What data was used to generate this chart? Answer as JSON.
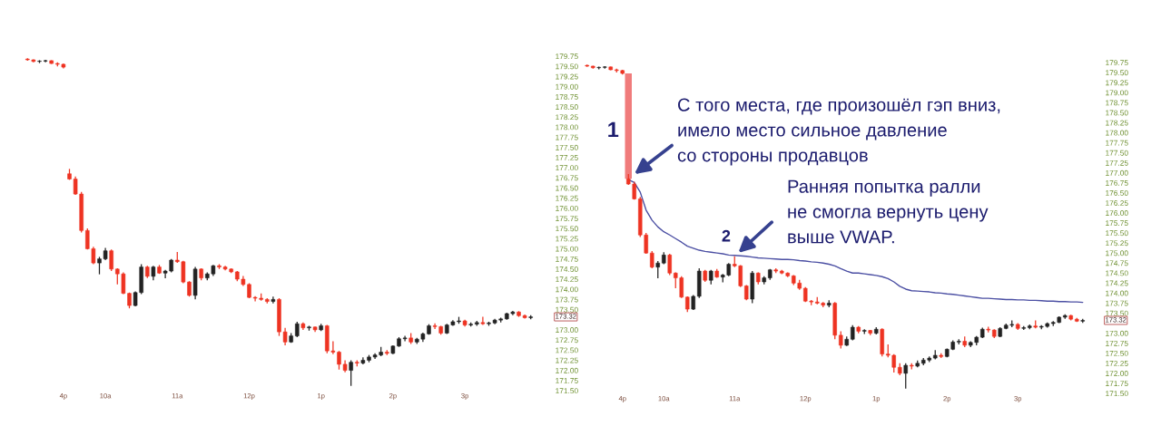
{
  "chart_data": [
    {
      "type": "candlestick",
      "categories": [
        null,
        null,
        null,
        null,
        null,
        null,
        "4p",
        null,
        null,
        null,
        null,
        null,
        null,
        "10a",
        null,
        null,
        null,
        null,
        null,
        null,
        null,
        null,
        null,
        null,
        null,
        "11a",
        null,
        null,
        null,
        null,
        null,
        null,
        null,
        null,
        null,
        null,
        null,
        "12p",
        null,
        null,
        null,
        null,
        null,
        null,
        null,
        null,
        null,
        null,
        null,
        "1p",
        null,
        null,
        null,
        null,
        null,
        null,
        null,
        null,
        null,
        null,
        null,
        "2p",
        null,
        null,
        null,
        null,
        null,
        null,
        null,
        null,
        null,
        null,
        null,
        "3p",
        null,
        null,
        null,
        null,
        null,
        null,
        null,
        null,
        null,
        null,
        null
      ],
      "ohlc": [
        [
          179.68,
          179.7,
          179.64,
          179.66
        ],
        [
          179.66,
          179.67,
          179.6,
          179.62
        ],
        [
          179.62,
          179.65,
          179.58,
          179.63
        ],
        [
          179.63,
          179.66,
          179.6,
          179.64
        ],
        [
          179.64,
          179.65,
          179.56,
          179.57
        ],
        [
          179.57,
          179.6,
          179.5,
          179.55
        ],
        [
          179.55,
          179.57,
          179.45,
          179.48
        ],
        [
          176.85,
          176.97,
          176.7,
          176.72
        ],
        [
          176.72,
          176.78,
          176.33,
          176.35
        ],
        [
          176.35,
          176.4,
          175.4,
          175.45
        ],
        [
          175.45,
          175.5,
          174.98,
          175.0
        ],
        [
          175.0,
          175.05,
          174.62,
          174.65
        ],
        [
          174.65,
          174.8,
          174.37,
          174.75
        ],
        [
          174.75,
          175.02,
          174.72,
          174.95
        ],
        [
          174.95,
          174.98,
          174.45,
          174.5
        ],
        [
          174.5,
          174.52,
          174.12,
          174.38
        ],
        [
          174.38,
          174.42,
          173.88,
          173.9
        ],
        [
          173.9,
          173.92,
          173.53,
          173.6
        ],
        [
          173.6,
          173.95,
          173.58,
          173.92
        ],
        [
          173.92,
          174.62,
          173.88,
          174.55
        ],
        [
          174.55,
          174.58,
          174.28,
          174.32
        ],
        [
          174.32,
          174.58,
          174.22,
          174.55
        ],
        [
          174.55,
          174.6,
          174.38,
          174.4
        ],
        [
          174.4,
          174.48,
          174.27,
          174.45
        ],
        [
          174.45,
          174.75,
          174.42,
          174.72
        ],
        [
          174.72,
          174.92,
          174.65,
          174.68
        ],
        [
          174.68,
          174.7,
          174.15,
          174.18
        ],
        [
          174.18,
          174.2,
          173.82,
          173.85
        ],
        [
          173.85,
          174.55,
          173.75,
          174.5
        ],
        [
          174.5,
          174.52,
          174.22,
          174.28
        ],
        [
          174.28,
          174.42,
          174.22,
          174.38
        ],
        [
          174.38,
          174.6,
          174.33,
          174.58
        ],
        [
          174.58,
          174.62,
          174.5,
          174.55
        ],
        [
          174.55,
          174.58,
          174.47,
          174.5
        ],
        [
          174.5,
          174.52,
          174.4,
          174.43
        ],
        [
          174.43,
          174.45,
          174.2,
          174.25
        ],
        [
          174.25,
          174.33,
          174.08,
          174.12
        ],
        [
          174.12,
          174.15,
          173.78,
          173.8
        ],
        [
          173.8,
          173.83,
          173.7,
          173.78
        ],
        [
          173.78,
          173.9,
          173.72,
          173.75
        ],
        [
          173.75,
          173.78,
          173.65,
          173.7
        ],
        [
          173.7,
          173.82,
          173.65,
          173.75
        ],
        [
          173.75,
          173.78,
          172.85,
          172.95
        ],
        [
          172.95,
          173.05,
          172.62,
          172.7
        ],
        [
          172.7,
          172.92,
          172.68,
          172.85
        ],
        [
          172.85,
          173.2,
          172.82,
          173.15
        ],
        [
          173.15,
          173.18,
          173.0,
          173.05
        ],
        [
          173.05,
          173.1,
          172.98,
          173.07
        ],
        [
          173.07,
          173.08,
          172.95,
          173.0
        ],
        [
          173.0,
          173.15,
          172.97,
          173.1
        ],
        [
          173.1,
          173.12,
          172.42,
          172.48
        ],
        [
          172.48,
          172.72,
          172.4,
          172.45
        ],
        [
          172.45,
          172.48,
          172.02,
          172.15
        ],
        [
          172.15,
          172.25,
          171.95,
          172.0
        ],
        [
          172.0,
          172.25,
          171.62,
          172.2
        ],
        [
          172.2,
          172.25,
          172.1,
          172.18
        ],
        [
          172.18,
          172.32,
          172.15,
          172.25
        ],
        [
          172.25,
          172.38,
          172.2,
          172.33
        ],
        [
          172.33,
          172.42,
          172.28,
          172.38
        ],
        [
          172.38,
          172.58,
          172.35,
          172.45
        ],
        [
          172.45,
          172.5,
          172.38,
          172.42
        ],
        [
          172.42,
          172.62,
          172.4,
          172.6
        ],
        [
          172.6,
          172.82,
          172.58,
          172.78
        ],
        [
          172.78,
          172.85,
          172.72,
          172.8
        ],
        [
          172.8,
          172.92,
          172.65,
          172.7
        ],
        [
          172.7,
          172.8,
          172.65,
          172.77
        ],
        [
          172.77,
          172.93,
          172.7,
          172.9
        ],
        [
          172.9,
          173.14,
          172.88,
          173.1
        ],
        [
          173.1,
          173.16,
          173.02,
          173.08
        ],
        [
          173.08,
          173.1,
          172.88,
          172.92
        ],
        [
          172.92,
          173.15,
          172.9,
          173.12
        ],
        [
          173.12,
          173.24,
          173.1,
          173.2
        ],
        [
          173.2,
          173.32,
          173.15,
          173.22
        ],
        [
          173.22,
          173.25,
          173.08,
          173.12
        ],
        [
          173.12,
          173.18,
          173.08,
          173.14
        ],
        [
          173.14,
          173.22,
          173.1,
          173.18
        ],
        [
          173.18,
          173.32,
          173.12,
          173.15
        ],
        [
          173.15,
          173.2,
          173.1,
          173.17
        ],
        [
          173.17,
          173.27,
          173.14,
          173.24
        ],
        [
          173.24,
          173.3,
          173.18,
          173.27
        ],
        [
          173.27,
          173.42,
          173.25,
          173.4
        ],
        [
          173.4,
          173.47,
          173.36,
          173.44
        ],
        [
          173.44,
          173.46,
          173.32,
          173.35
        ],
        [
          173.35,
          173.38,
          173.28,
          173.3
        ],
        [
          173.3,
          173.36,
          173.26,
          173.32
        ]
      ],
      "colors": [
        "#ee3322",
        "#ee3322",
        "#222222",
        "#222222",
        "#ee3322",
        "#ee3322",
        "#ee3322",
        "#ee3322",
        "#ee3322",
        "#ee3322",
        "#ee3322",
        "#ee3322",
        "#222222",
        "#222222",
        "#ee3322",
        "#ee3322",
        "#ee3322",
        "#ee3322",
        "#222222",
        "#222222",
        "#ee3322",
        "#222222",
        "#ee3322",
        "#222222",
        "#222222",
        "#ee3322",
        "#ee3322",
        "#ee3322",
        "#222222",
        "#ee3322",
        "#222222",
        "#222222",
        "#ee3322",
        "#ee3322",
        "#ee3322",
        "#ee3322",
        "#ee3322",
        "#ee3322",
        "#ee3322",
        "#ee3322",
        "#ee3322",
        "#222222",
        "#ee3322",
        "#ee3322",
        "#222222",
        "#222222",
        "#ee3322",
        "#222222",
        "#ee3322",
        "#222222",
        "#ee3322",
        "#ee3322",
        "#ee3322",
        "#ee3322",
        "#222222",
        "#ee3322",
        "#222222",
        "#222222",
        "#222222",
        "#222222",
        "#ee3322",
        "#222222",
        "#222222",
        "#222222",
        "#ee3322",
        "#222222",
        "#222222",
        "#222222",
        "#ee3322",
        "#ee3322",
        "#222222",
        "#222222",
        "#222222",
        "#ee3322",
        "#222222",
        "#222222",
        "#ee3322",
        "#222222",
        "#222222",
        "#222222",
        "#222222",
        "#222222",
        "#ee3322",
        "#ee3322",
        "#222222"
      ],
      "ylim": [
        171.5,
        179.75
      ],
      "yticks": [
        {
          "value": 171.5,
          "label": "171.50"
        },
        {
          "value": 171.75,
          "label": "171.75"
        },
        {
          "value": 172,
          "label": "172.00"
        },
        {
          "value": 172.25,
          "label": "172.25"
        },
        {
          "value": 172.5,
          "label": "172.50"
        },
        {
          "value": 172.75,
          "label": "172.75"
        },
        {
          "value": 173,
          "label": "173.00"
        },
        {
          "value": 173.5,
          "label": "173.50"
        },
        {
          "value": 173.75,
          "label": "173.75"
        },
        {
          "value": 174,
          "label": "174.00"
        },
        {
          "value": 174.25,
          "label": "174.25"
        },
        {
          "value": 174.5,
          "label": "174.50"
        },
        {
          "value": 174.75,
          "label": "174.75"
        },
        {
          "value": 175,
          "label": "175.00"
        },
        {
          "value": 175.25,
          "label": "175.25"
        },
        {
          "value": 175.5,
          "label": "175.50"
        },
        {
          "value": 175.75,
          "label": "175.75"
        },
        {
          "value": 176,
          "label": "176.00"
        },
        {
          "value": 176.25,
          "label": "176.25"
        },
        {
          "value": 176.5,
          "label": "176.50"
        },
        {
          "value": 176.75,
          "label": "176.75"
        },
        {
          "value": 177,
          "label": "177.00"
        },
        {
          "value": 177.25,
          "label": "177.25"
        },
        {
          "value": 177.5,
          "label": "177.50"
        },
        {
          "value": 177.75,
          "label": "177.75"
        },
        {
          "value": 178,
          "label": "178.00"
        },
        {
          "value": 178.25,
          "label": "178.25"
        },
        {
          "value": 178.5,
          "label": "178.50"
        },
        {
          "value": 178.75,
          "label": "178.75"
        },
        {
          "value": 179,
          "label": "179.00"
        },
        {
          "value": 179.25,
          "label": "179.25"
        },
        {
          "value": 179.5,
          "label": "179.50"
        },
        {
          "value": 179.75,
          "label": "179.75"
        }
      ],
      "annotations": [
        "173.32"
      ]
    },
    {
      "type": "candlestick",
      "categories": [
        null,
        null,
        null,
        null,
        null,
        null,
        "4p",
        null,
        null,
        null,
        null,
        null,
        null,
        "10a",
        null,
        null,
        null,
        null,
        null,
        null,
        null,
        null,
        null,
        null,
        null,
        "11a",
        null,
        null,
        null,
        null,
        null,
        null,
        null,
        null,
        null,
        null,
        null,
        "12p",
        null,
        null,
        null,
        null,
        null,
        null,
        null,
        null,
        null,
        null,
        null,
        "1p",
        null,
        null,
        null,
        null,
        null,
        null,
        null,
        null,
        null,
        null,
        null,
        "2p",
        null,
        null,
        null,
        null,
        null,
        null,
        null,
        null,
        null,
        null,
        null,
        "3p",
        null,
        null,
        null,
        null,
        null,
        null,
        null,
        null,
        null,
        null,
        null
      ],
      "ohlc": [
        [
          179.68,
          179.7,
          179.64,
          179.66
        ],
        [
          179.66,
          179.67,
          179.6,
          179.62
        ],
        [
          179.62,
          179.65,
          179.58,
          179.63
        ],
        [
          179.63,
          179.66,
          179.6,
          179.64
        ],
        [
          179.64,
          179.65,
          179.56,
          179.57
        ],
        [
          179.57,
          179.6,
          179.5,
          179.55
        ],
        [
          179.55,
          179.57,
          179.45,
          179.48
        ],
        [
          176.85,
          176.97,
          176.7,
          176.72
        ],
        [
          176.72,
          176.78,
          176.33,
          176.35
        ],
        [
          176.35,
          176.4,
          175.4,
          175.45
        ],
        [
          175.45,
          175.5,
          174.98,
          175.0
        ],
        [
          175.0,
          175.05,
          174.62,
          174.65
        ],
        [
          174.65,
          174.8,
          174.37,
          174.75
        ],
        [
          174.75,
          175.02,
          174.72,
          174.95
        ],
        [
          174.95,
          174.98,
          174.45,
          174.5
        ],
        [
          174.5,
          174.52,
          174.12,
          174.38
        ],
        [
          174.38,
          174.42,
          173.88,
          173.9
        ],
        [
          173.9,
          173.92,
          173.53,
          173.6
        ],
        [
          173.6,
          173.95,
          173.58,
          173.92
        ],
        [
          173.92,
          174.62,
          173.88,
          174.55
        ],
        [
          174.55,
          174.58,
          174.28,
          174.32
        ],
        [
          174.32,
          174.58,
          174.22,
          174.55
        ],
        [
          174.55,
          174.6,
          174.38,
          174.4
        ],
        [
          174.4,
          174.48,
          174.27,
          174.45
        ],
        [
          174.45,
          174.75,
          174.42,
          174.72
        ],
        [
          174.72,
          174.92,
          174.65,
          174.68
        ],
        [
          174.68,
          174.7,
          174.15,
          174.18
        ],
        [
          174.18,
          174.2,
          173.82,
          173.85
        ],
        [
          173.85,
          174.55,
          173.75,
          174.5
        ],
        [
          174.5,
          174.52,
          174.22,
          174.28
        ],
        [
          174.28,
          174.42,
          174.22,
          174.38
        ],
        [
          174.38,
          174.6,
          174.33,
          174.58
        ],
        [
          174.58,
          174.62,
          174.5,
          174.55
        ],
        [
          174.55,
          174.58,
          174.47,
          174.5
        ],
        [
          174.5,
          174.52,
          174.4,
          174.43
        ],
        [
          174.43,
          174.45,
          174.2,
          174.25
        ],
        [
          174.25,
          174.33,
          174.08,
          174.12
        ],
        [
          174.12,
          174.15,
          173.78,
          173.8
        ],
        [
          173.8,
          173.83,
          173.7,
          173.78
        ],
        [
          173.78,
          173.9,
          173.72,
          173.75
        ],
        [
          173.75,
          173.78,
          173.65,
          173.7
        ],
        [
          173.7,
          173.82,
          173.65,
          173.75
        ],
        [
          173.75,
          173.78,
          172.85,
          172.95
        ],
        [
          172.95,
          173.05,
          172.62,
          172.7
        ],
        [
          172.7,
          172.92,
          172.68,
          172.85
        ],
        [
          172.85,
          173.2,
          172.82,
          173.15
        ],
        [
          173.15,
          173.18,
          173.0,
          173.05
        ],
        [
          173.05,
          173.1,
          172.98,
          173.07
        ],
        [
          173.07,
          173.08,
          172.95,
          173.0
        ],
        [
          173.0,
          173.15,
          172.97,
          173.1
        ],
        [
          173.1,
          173.12,
          172.42,
          172.48
        ],
        [
          172.48,
          172.72,
          172.4,
          172.45
        ],
        [
          172.45,
          172.48,
          172.02,
          172.15
        ],
        [
          172.15,
          172.25,
          171.95,
          172.0
        ],
        [
          172.0,
          172.25,
          171.62,
          172.2
        ],
        [
          172.2,
          172.25,
          172.1,
          172.18
        ],
        [
          172.18,
          172.32,
          172.15,
          172.25
        ],
        [
          172.25,
          172.38,
          172.2,
          172.33
        ],
        [
          172.33,
          172.42,
          172.28,
          172.38
        ],
        [
          172.38,
          172.58,
          172.35,
          172.45
        ],
        [
          172.45,
          172.5,
          172.38,
          172.42
        ],
        [
          172.42,
          172.62,
          172.4,
          172.6
        ],
        [
          172.6,
          172.82,
          172.58,
          172.78
        ],
        [
          172.78,
          172.85,
          172.72,
          172.8
        ],
        [
          172.8,
          172.92,
          172.65,
          172.7
        ],
        [
          172.7,
          172.8,
          172.65,
          172.77
        ],
        [
          172.77,
          172.93,
          172.7,
          172.9
        ],
        [
          172.9,
          173.14,
          172.88,
          173.1
        ],
        [
          173.1,
          173.16,
          173.02,
          173.08
        ],
        [
          173.08,
          173.1,
          172.88,
          172.92
        ],
        [
          172.92,
          173.15,
          172.9,
          173.12
        ],
        [
          173.12,
          173.24,
          173.1,
          173.2
        ],
        [
          173.2,
          173.32,
          173.15,
          173.22
        ],
        [
          173.22,
          173.25,
          173.08,
          173.12
        ],
        [
          173.12,
          173.18,
          173.08,
          173.14
        ],
        [
          173.14,
          173.22,
          173.1,
          173.18
        ],
        [
          173.18,
          173.32,
          173.12,
          173.15
        ],
        [
          173.15,
          173.2,
          173.1,
          173.17
        ],
        [
          173.17,
          173.27,
          173.14,
          173.24
        ],
        [
          173.24,
          173.3,
          173.18,
          173.27
        ],
        [
          173.27,
          173.42,
          173.25,
          173.4
        ],
        [
          173.4,
          173.47,
          173.36,
          173.44
        ],
        [
          173.44,
          173.46,
          173.32,
          173.35
        ],
        [
          173.35,
          173.38,
          173.28,
          173.3
        ],
        [
          173.3,
          173.36,
          173.26,
          173.32
        ]
      ],
      "colors": [
        "#ee3322",
        "#ee3322",
        "#222222",
        "#222222",
        "#ee3322",
        "#ee3322",
        "#ee3322",
        "#ee3322",
        "#ee3322",
        "#ee3322",
        "#ee3322",
        "#ee3322",
        "#222222",
        "#222222",
        "#ee3322",
        "#ee3322",
        "#ee3322",
        "#ee3322",
        "#222222",
        "#222222",
        "#ee3322",
        "#222222",
        "#ee3322",
        "#222222",
        "#222222",
        "#ee3322",
        "#ee3322",
        "#ee3322",
        "#222222",
        "#ee3322",
        "#222222",
        "#222222",
        "#ee3322",
        "#ee3322",
        "#ee3322",
        "#ee3322",
        "#ee3322",
        "#ee3322",
        "#ee3322",
        "#ee3322",
        "#ee3322",
        "#222222",
        "#ee3322",
        "#ee3322",
        "#222222",
        "#222222",
        "#ee3322",
        "#222222",
        "#ee3322",
        "#222222",
        "#ee3322",
        "#ee3322",
        "#ee3322",
        "#ee3322",
        "#222222",
        "#ee3322",
        "#222222",
        "#222222",
        "#222222",
        "#222222",
        "#ee3322",
        "#222222",
        "#222222",
        "#222222",
        "#ee3322",
        "#222222",
        "#222222",
        "#222222",
        "#ee3322",
        "#ee3322",
        "#222222",
        "#222222",
        "#222222",
        "#ee3322",
        "#222222",
        "#222222",
        "#ee3322",
        "#222222",
        "#222222",
        "#222222",
        "#222222",
        "#222222",
        "#ee3322",
        "#ee3322",
        "#222222"
      ],
      "series": [
        {
          "type": "line",
          "color": "#4b4fa3",
          "values": [
            null,
            null,
            null,
            null,
            null,
            null,
            null,
            176.83,
            176.76,
            176.52,
            176.07,
            175.82,
            175.65,
            175.53,
            175.45,
            175.36,
            175.27,
            175.17,
            175.12,
            175.07,
            175.04,
            175.02,
            175.0,
            174.98,
            174.95,
            174.94,
            174.93,
            174.92,
            174.9,
            174.88,
            174.87,
            174.86,
            174.85,
            174.84,
            174.84,
            174.83,
            174.81,
            174.8,
            174.78,
            174.77,
            174.75,
            174.72,
            174.68,
            174.61,
            174.55,
            174.5,
            174.5,
            174.48,
            174.46,
            174.44,
            174.41,
            174.36,
            174.28,
            174.17,
            174.1,
            174.06,
            174.05,
            174.04,
            174.03,
            174.01,
            174.0,
            173.98,
            173.97,
            173.95,
            173.93,
            173.91,
            173.89,
            173.87,
            173.87,
            173.86,
            173.85,
            173.84,
            173.84,
            173.83,
            173.83,
            173.82,
            173.82,
            173.81,
            173.8,
            173.8,
            173.79,
            173.79,
            173.78,
            173.78,
            173.77
          ]
        },
        {
          "type": "bar",
          "color": "#f07b7b",
          "values": [
            null,
            null,
            null,
            null,
            null,
            null,
            null,
            2.63,
            null,
            null,
            null,
            null,
            null,
            null,
            null,
            null,
            null,
            null,
            null,
            null,
            null,
            null,
            null,
            null,
            null,
            null,
            null,
            null,
            null,
            null,
            null,
            null,
            null,
            null,
            null,
            null,
            null,
            null,
            null,
            null,
            null,
            null,
            null,
            null,
            null,
            null,
            null,
            null,
            null,
            null,
            null,
            null,
            null,
            null,
            null,
            null,
            null,
            null,
            null,
            null,
            null,
            null,
            null,
            null,
            null,
            null,
            null,
            null,
            null,
            null,
            null,
            null,
            null,
            null,
            null,
            null,
            null,
            null,
            null,
            null,
            null,
            null,
            null,
            null,
            null
          ],
          "base": [
            null,
            null,
            null,
            null,
            null,
            null,
            null,
            176.85,
            null,
            null,
            null,
            null,
            null,
            null,
            null,
            null,
            null,
            null,
            null,
            null,
            null,
            null,
            null,
            null,
            null,
            null,
            null,
            null,
            null,
            null,
            null,
            null,
            null,
            null,
            null,
            null,
            null,
            null,
            null,
            null,
            null,
            null,
            null,
            null,
            null,
            null,
            null,
            null,
            null,
            null,
            null,
            null,
            null,
            null,
            null,
            null,
            null,
            null,
            null,
            null,
            null,
            null,
            null,
            null,
            null,
            null,
            null,
            null,
            null,
            null,
            null,
            null,
            null,
            null,
            null,
            null,
            null,
            null,
            null,
            null,
            null,
            null,
            null,
            null,
            null
          ]
        }
      ],
      "ylim": [
        171.5,
        179.75
      ],
      "yticks": [
        {
          "value": 171.5,
          "label": "171.50"
        },
        {
          "value": 171.75,
          "label": "171.75"
        },
        {
          "value": 172,
          "label": "172.00"
        },
        {
          "value": 172.25,
          "label": "172.25"
        },
        {
          "value": 172.5,
          "label": "172.50"
        },
        {
          "value": 172.75,
          "label": "172.75"
        },
        {
          "value": 173,
          "label": "173.00"
        },
        {
          "value": 173.5,
          "label": "173.50"
        },
        {
          "value": 173.75,
          "label": "173.75"
        },
        {
          "value": 174,
          "label": "174.00"
        },
        {
          "value": 174.25,
          "label": "174.25"
        },
        {
          "value": 174.5,
          "label": "174.50"
        },
        {
          "value": 174.75,
          "label": "174.75"
        },
        {
          "value": 175,
          "label": "175.00"
        },
        {
          "value": 175.25,
          "label": "175.25"
        },
        {
          "value": 175.5,
          "label": "175.50"
        },
        {
          "value": 175.75,
          "label": "175.75"
        },
        {
          "value": 176,
          "label": "176.00"
        },
        {
          "value": 176.25,
          "label": "176.25"
        },
        {
          "value": 176.5,
          "label": "176.50"
        },
        {
          "value": 176.75,
          "label": "176.75"
        },
        {
          "value": 177,
          "label": "177.00"
        },
        {
          "value": 177.25,
          "label": "177.25"
        },
        {
          "value": 177.5,
          "label": "177.50"
        },
        {
          "value": 177.75,
          "label": "177.75"
        },
        {
          "value": 178,
          "label": "178.00"
        },
        {
          "value": 178.25,
          "label": "178.25"
        },
        {
          "value": 178.5,
          "label": "178.50"
        },
        {
          "value": 178.75,
          "label": "178.75"
        },
        {
          "value": 179,
          "label": "179.00"
        },
        {
          "value": 179.25,
          "label": "179.25"
        },
        {
          "value": 179.5,
          "label": "179.50"
        },
        {
          "value": 179.75,
          "label": "179.75"
        }
      ],
      "annotations": [
        "1",
        {
          "text": "2",
          "x": "11a",
          "y": 174.92
        },
        "С того места, где произошёл гэп вниз,\nимело место сильное давление\nсо стороны продавцов",
        "Ранняя попытка ралли\nне смогла вернуть цену\nвыше VWAP.",
        "173.32"
      ]
    }
  ]
}
